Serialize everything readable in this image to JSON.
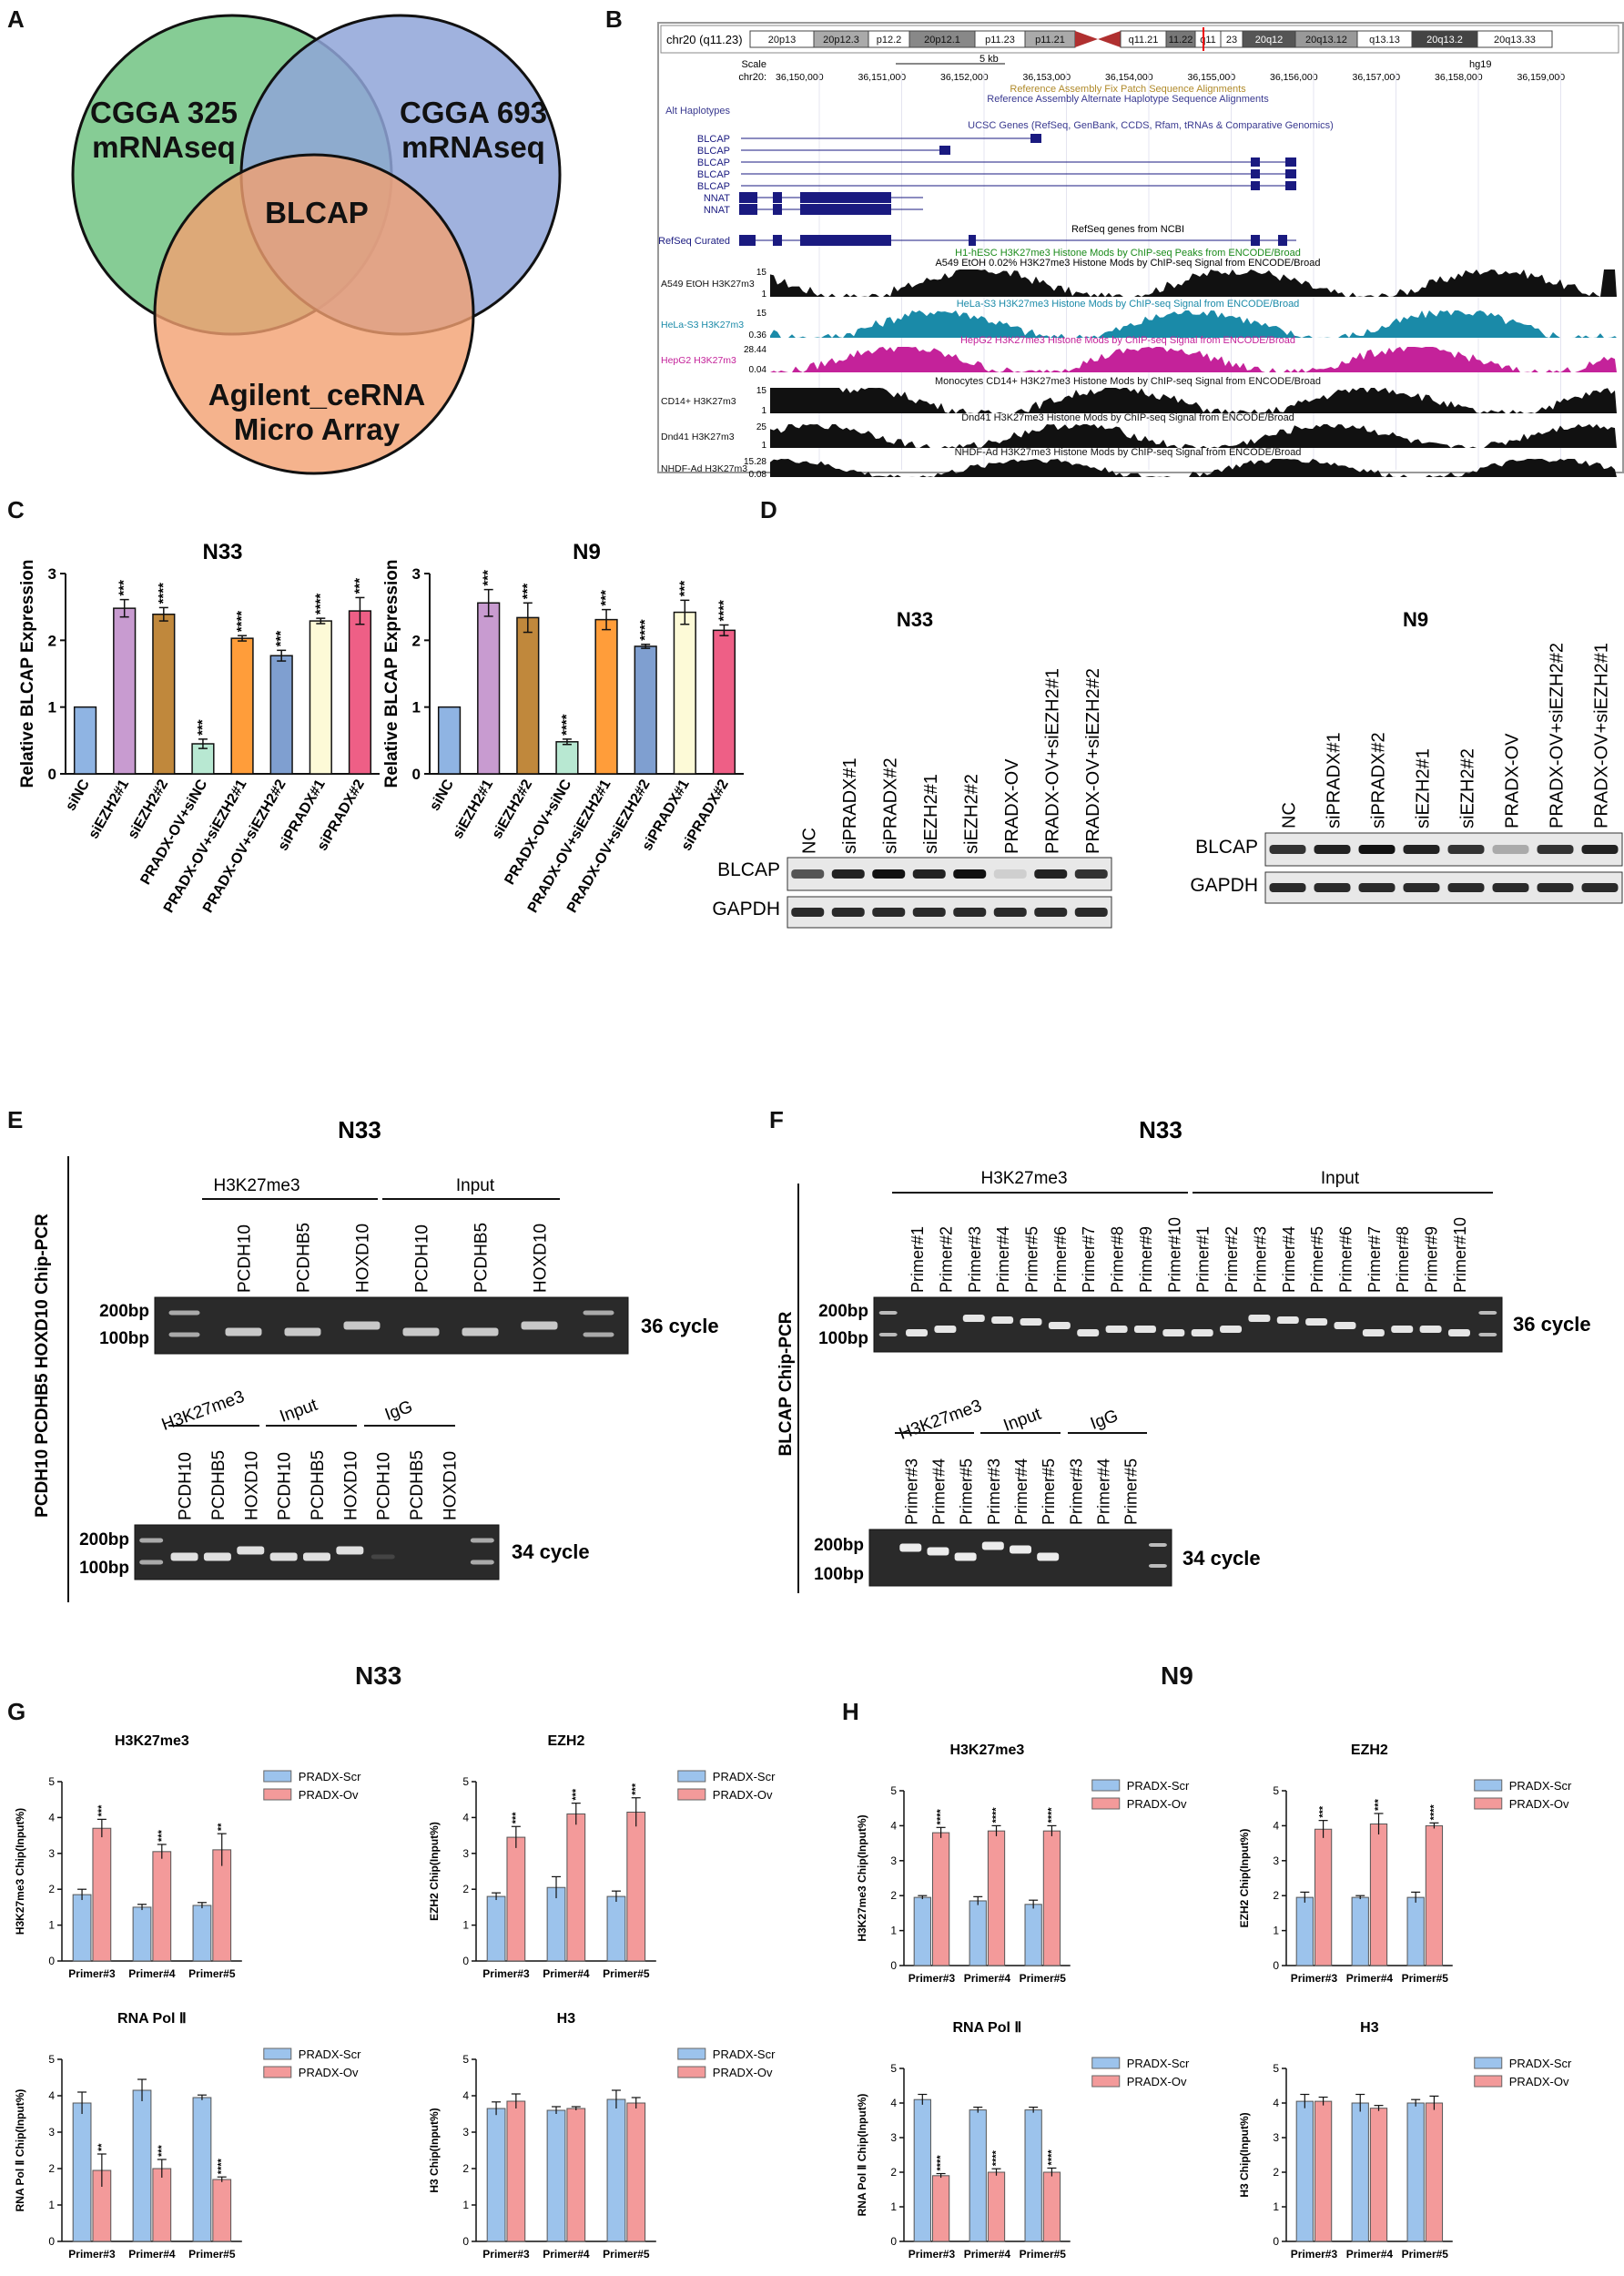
{
  "panels": {
    "A": "A",
    "B": "B",
    "C": "C",
    "D": "D",
    "E": "E",
    "F": "F",
    "G": "G",
    "H": "H"
  },
  "venn": {
    "sets": [
      "CGGA 325",
      "mRNAseq",
      "CGGA 693",
      "mRNAseq",
      "Agilent_ceRNA",
      "Micro Array"
    ],
    "center": "BLCAP",
    "colors": {
      "a": "#7fc98f",
      "b": "#8fa5d8",
      "c": "#f2a070"
    }
  },
  "browser": {
    "chrom_label": "chr20 (q11.23)",
    "bands": [
      "20p13",
      "20p12.3",
      "p12.2",
      "20p12.1",
      "p11.23",
      "p11.21",
      "q11.21",
      "11.22",
      "q11",
      "23",
      "20q12",
      "20q13.12",
      "q13.13",
      "20q13.2",
      "20q13.33"
    ],
    "scale_label": "Scale",
    "chr_label": "chr20:",
    "scale_kb": "5 kb",
    "assembly": "hg19",
    "positions": [
      "36,150,000",
      "36,151,000",
      "36,152,000",
      "36,153,000",
      "36,154,000",
      "36,155,000",
      "36,156,000",
      "36,157,000",
      "36,158,000",
      "36,159,000"
    ],
    "text": {
      "fix": "Reference Assembly Fix Patch Sequence Alignments",
      "alt": "Reference Assembly Alternate Haplotype Sequence Alignments",
      "alt_hap": "Alt Haplotypes",
      "ucsc": "UCSC Genes (RefSeq, GenBank, CCDS, Rfam, tRNAs & Comparative Genomics)",
      "refseq_ncbi": "RefSeq genes from NCBI",
      "refseq_curated": "RefSeq Curated",
      "h1": "H1-hESC H3K27me3 Histone Mods by ChIP-seq Peaks from ENCODE/Broad",
      "a549": "A549 EtOH 0.02% H3K27me3 Histone Mods by ChIP-seq Signal from ENCODE/Broad",
      "hela": "HeLa-S3 H3K27me3 Histone Mods by ChIP-seq Signal from ENCODE/Broad",
      "hepg2": "HepG2 H3K27me3 Histone Mods by ChIP-seq Signal from ENCODE/Broad",
      "cd14": "Monocytes CD14+ H3K27me3 Histone Mods by ChIP-seq Signal from ENCODE/Broad",
      "dnd41": "Dnd41 H3K27me3 Histone Mods by ChIP-seq Signal from ENCODE/Broad",
      "nhdf": "NHDF-Ad H3K27me3 Histone Mods by ChIP-seq Signal from ENCODE/Broad"
    },
    "genes": [
      "BLCAP",
      "BLCAP",
      "BLCAP",
      "BLCAP",
      "BLCAP",
      "NNAT",
      "NNAT"
    ],
    "tracks": [
      {
        "label": "A549 EtOH H3K27m3",
        "max": "15",
        "min": "1",
        "color": "#111111"
      },
      {
        "label": "HeLa-S3 H3K27m3",
        "max": "15",
        "min": "0.36",
        "color": "#1a8aa8"
      },
      {
        "label": "HepG2 H3K27m3",
        "max": "28.44",
        "min": "0.04",
        "color": "#c4229a"
      },
      {
        "label": "CD14+ H3K27m3",
        "max": "15",
        "min": "1",
        "color": "#111111"
      },
      {
        "label": "Dnd41 H3K27m3",
        "max": "25",
        "min": "1",
        "color": "#111111"
      },
      {
        "label": "NHDF-Ad H3K27m3",
        "max": "15.28",
        "min": "0.08",
        "color": "#111111"
      }
    ]
  },
  "western": {
    "n33_title": "N33",
    "n9_title": "N9",
    "n33_lanes": [
      "NC",
      "siPRADX#1",
      "siPRADX#2",
      "siEZH2#1",
      "siEZH2#2",
      "PRADX-OV",
      "PRADX-OV+siEZH2#1",
      "PRADX-OV+siEZH2#2"
    ],
    "n9_lanes": [
      "NC",
      "siPRADX#1",
      "siPRADX#2",
      "siEZH2#1",
      "siEZH2#2",
      "PRADX-OV",
      "PRADX-OV+siEZH2#2",
      "PRADX-OV+siEZH2#1"
    ],
    "rows": [
      "BLCAP",
      "GAPDH"
    ]
  },
  "chip_e": {
    "title": "N33",
    "side": "PCDH10 PCDHB5 HOXD10  Chip-PCR",
    "top_groups": [
      "H3K27me3",
      "Input"
    ],
    "top_lanes": [
      "PCDH10",
      "PCDHB5",
      "HOXD10",
      "PCDH10",
      "PCDHB5",
      "HOXD10"
    ],
    "bot_groups": [
      "H3K27me3",
      "Input",
      "IgG"
    ],
    "bot_lanes": [
      "PCDH10",
      "PCDHB5",
      "HOXD10",
      "PCDH10",
      "PCDHB5",
      "HOXD10",
      "PCDH10",
      "PCDHB5",
      "HOXD10"
    ],
    "ladder": [
      "200bp",
      "100bp"
    ],
    "cycles": [
      "36 cycle",
      "34 cycle"
    ]
  },
  "chip_f": {
    "title": "N33",
    "side": "BLCAP  Chip-PCR",
    "top_groups": [
      "H3K27me3",
      "Input"
    ],
    "top_lanes": [
      "Primer#1",
      "Primer#2",
      "Primer#3",
      "Primer#4",
      "Primer#5",
      "Primer#6",
      "Primer#7",
      "Primer#8",
      "Primer#9",
      "Primer#10",
      "Primer#1",
      "Primer#2",
      "Primer#3",
      "Primer#4",
      "Primer#5",
      "Primer#6",
      "Primer#7",
      "Primer#8",
      "Primer#9",
      "Primer#10"
    ],
    "bot_groups": [
      "H3K27me3",
      "Input",
      "IgG"
    ],
    "bot_lanes": [
      "Primer#3",
      "Primer#4",
      "Primer#5",
      "Primer#3",
      "Primer#4",
      "Primer#5",
      "Primer#3",
      "Primer#4",
      "Primer#5"
    ],
    "ladder": [
      "200bp",
      "100bp"
    ],
    "cycles": [
      "36 cycle",
      "34 cycle"
    ]
  },
  "chart_data": [
    {
      "id": "C_N33",
      "type": "bar",
      "title": "N33",
      "ylabel": "Relative BLCAP Expression",
      "ylim": [
        0,
        3
      ],
      "categories": [
        "siNC",
        "siEZH2#1",
        "siEZH2#2",
        "PRADX-OV+siNC",
        "PRADX-OV+siEZH2#1",
        "PRADX-OV+siEZH2#2",
        "siPRADX#1",
        "siPRADX#2"
      ],
      "values": [
        1.0,
        2.48,
        2.39,
        0.45,
        2.03,
        1.77,
        2.29,
        2.44
      ],
      "errors": [
        0,
        0.13,
        0.1,
        0.07,
        0.04,
        0.08,
        0.04,
        0.2
      ],
      "sig": [
        "",
        "***",
        "****",
        "***",
        "****",
        "***",
        "****",
        "***"
      ],
      "colors": [
        "#8fb4e3",
        "#c89bd0",
        "#c0883c",
        "#b8e8d2",
        "#ff9d3a",
        "#7f9fd0",
        "#fdfad7",
        "#ee5f86"
      ]
    },
    {
      "id": "C_N9",
      "type": "bar",
      "title": "N9",
      "ylabel": "Relative BLCAP Expression",
      "ylim": [
        0,
        3
      ],
      "categories": [
        "siNC",
        "siEZH2#1",
        "siEZH2#2",
        "PRADX-OV+siNC",
        "PRADX-OV+siEZH2#1",
        "PRADX-OV+siEZH2#2",
        "siPRADX#1",
        "siPRADX#2"
      ],
      "values": [
        1.0,
        2.56,
        2.34,
        0.48,
        2.31,
        1.91,
        2.42,
        2.15
      ],
      "errors": [
        0,
        0.2,
        0.22,
        0.04,
        0.15,
        0.03,
        0.18,
        0.08
      ],
      "sig": [
        "",
        "***",
        "***",
        "****",
        "***",
        "****",
        "***",
        "****"
      ],
      "colors": [
        "#8fb4e3",
        "#c89bd0",
        "#c0883c",
        "#b8e8d2",
        "#ff9d3a",
        "#7f9fd0",
        "#fdfad7",
        "#ee5f86"
      ]
    },
    {
      "id": "G1",
      "type": "bar",
      "title": "H3K27me3",
      "ylabel": "H3K27me3 Chip(Input%)",
      "ylim": [
        0,
        5
      ],
      "categories": [
        "Primer#3",
        "Primer#4",
        "Primer#5"
      ],
      "series": [
        {
          "name": "PRADX-Scr",
          "values": [
            1.85,
            1.5,
            1.55
          ],
          "errors": [
            0.15,
            0.08,
            0.08
          ]
        },
        {
          "name": "PRADX-Ov",
          "values": [
            3.7,
            3.05,
            3.1
          ],
          "errors": [
            0.25,
            0.2,
            0.45
          ]
        }
      ],
      "sig": [
        "***",
        "***",
        "**"
      ]
    },
    {
      "id": "G2",
      "type": "bar",
      "title": "EZH2",
      "ylabel": "EZH2 Chip(Input%)",
      "ylim": [
        0,
        5
      ],
      "categories": [
        "Primer#3",
        "Primer#4",
        "Primer#5"
      ],
      "series": [
        {
          "name": "PRADX-Scr",
          "values": [
            1.8,
            2.05,
            1.8
          ],
          "errors": [
            0.1,
            0.3,
            0.15
          ]
        },
        {
          "name": "PRADX-Ov",
          "values": [
            3.45,
            4.1,
            4.15
          ],
          "errors": [
            0.3,
            0.3,
            0.4
          ]
        }
      ],
      "sig": [
        "***",
        "***",
        "***"
      ]
    },
    {
      "id": "G3",
      "type": "bar",
      "title": "RNA Pol Ⅱ",
      "ylabel": "RNA Pol Ⅱ Chip(Input%)",
      "ylim": [
        0,
        5
      ],
      "categories": [
        "Primer#3",
        "Primer#4",
        "Primer#5"
      ],
      "series": [
        {
          "name": "PRADX-Scr",
          "values": [
            3.8,
            4.15,
            3.95
          ],
          "errors": [
            0.3,
            0.3,
            0.07
          ]
        },
        {
          "name": "PRADX-Ov",
          "values": [
            1.95,
            2.0,
            1.7
          ],
          "errors": [
            0.45,
            0.25,
            0.07
          ]
        }
      ],
      "sig": [
        "**",
        "***",
        "****"
      ]
    },
    {
      "id": "G4",
      "type": "bar",
      "title": "H3",
      "ylabel": "H3 Chip(Input%)",
      "ylim": [
        0,
        5
      ],
      "categories": [
        "Primer#3",
        "Primer#4",
        "Primer#5"
      ],
      "series": [
        {
          "name": "PRADX-Scr",
          "values": [
            3.65,
            3.6,
            3.9
          ],
          "errors": [
            0.18,
            0.1,
            0.25
          ]
        },
        {
          "name": "PRADX-Ov",
          "values": [
            3.85,
            3.65,
            3.8
          ],
          "errors": [
            0.2,
            0.05,
            0.15
          ]
        }
      ],
      "sig": [
        "",
        "",
        ""
      ]
    },
    {
      "id": "H1",
      "type": "bar",
      "title": "H3K27me3",
      "ylabel": "H3K27me3 Chip(Input%)",
      "ylim": [
        0,
        5
      ],
      "categories": [
        "Primer#3",
        "Primer#4",
        "Primer#5"
      ],
      "series": [
        {
          "name": "PRADX-Scr",
          "values": [
            1.95,
            1.85,
            1.75
          ],
          "errors": [
            0.05,
            0.12,
            0.12
          ]
        },
        {
          "name": "PRADX-Ov",
          "values": [
            3.8,
            3.85,
            3.85
          ],
          "errors": [
            0.15,
            0.15,
            0.15
          ]
        }
      ],
      "sig": [
        "****",
        "****",
        "****"
      ]
    },
    {
      "id": "H2",
      "type": "bar",
      "title": "EZH2",
      "ylabel": "EZH2 Chip(Input%)",
      "ylim": [
        0,
        5
      ],
      "categories": [
        "Primer#3",
        "Primer#4",
        "Primer#5"
      ],
      "series": [
        {
          "name": "PRADX-Scr",
          "values": [
            1.95,
            1.95,
            1.95
          ],
          "errors": [
            0.15,
            0.05,
            0.15
          ]
        },
        {
          "name": "PRADX-Ov",
          "values": [
            3.9,
            4.05,
            4.0
          ],
          "errors": [
            0.25,
            0.3,
            0.08
          ]
        }
      ],
      "sig": [
        "***",
        "***",
        "****"
      ]
    },
    {
      "id": "H3",
      "type": "bar",
      "title": "RNA Pol Ⅱ",
      "ylabel": "RNA Pol Ⅱ Chip(Input%)",
      "ylim": [
        0,
        5
      ],
      "categories": [
        "Primer#3",
        "Primer#4",
        "Primer#5"
      ],
      "series": [
        {
          "name": "PRADX-Scr",
          "values": [
            4.1,
            3.8,
            3.8
          ],
          "errors": [
            0.15,
            0.08,
            0.08
          ]
        },
        {
          "name": "PRADX-Ov",
          "values": [
            1.9,
            2.0,
            2.0
          ],
          "errors": [
            0.06,
            0.1,
            0.12
          ]
        }
      ],
      "sig": [
        "****",
        "****",
        "****"
      ]
    },
    {
      "id": "H4",
      "type": "bar",
      "title": "H3",
      "ylabel": "H3 Chip(Input%)",
      "ylim": [
        0,
        5
      ],
      "categories": [
        "Primer#3",
        "Primer#4",
        "Primer#5"
      ],
      "series": [
        {
          "name": "PRADX-Scr",
          "values": [
            4.05,
            4.0,
            4.0
          ],
          "errors": [
            0.2,
            0.25,
            0.1
          ]
        },
        {
          "name": "PRADX-Ov",
          "values": [
            4.05,
            3.85,
            4.0
          ],
          "errors": [
            0.12,
            0.08,
            0.2
          ]
        }
      ],
      "sig": [
        "",
        "",
        ""
      ]
    }
  ],
  "gh_titles": {
    "g": "N33",
    "h": "N9"
  },
  "legend_colors": {
    "scr": "#9cc3ec",
    "ov": "#f39a9a"
  }
}
